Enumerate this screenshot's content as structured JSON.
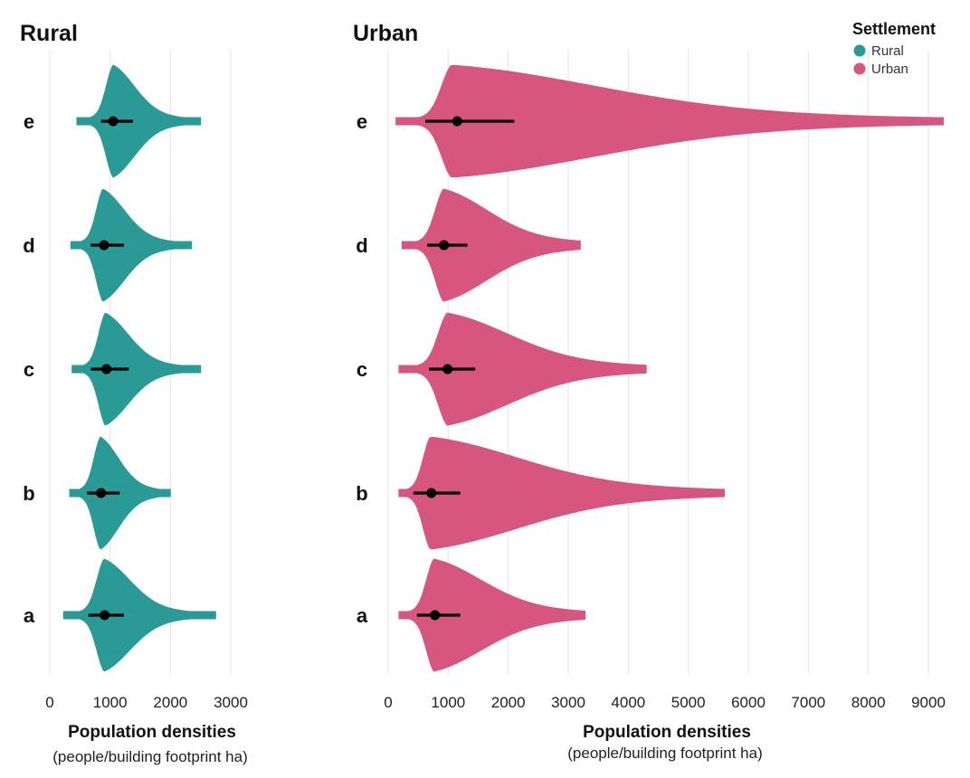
{
  "chart_data": {
    "type": "violin",
    "legend": {
      "title": "Settlement",
      "position": "top-right",
      "entries": [
        {
          "label": "Rural",
          "color": "#2a9a96"
        },
        {
          "label": "Urban",
          "color": "#d6567f"
        }
      ]
    },
    "panels": [
      {
        "title": "Rural",
        "color": "#2a9a96",
        "categories": [
          "e",
          "d",
          "c",
          "b",
          "a"
        ],
        "xlim": [
          0,
          3000
        ],
        "xticks": [
          0,
          1000,
          2000,
          3000
        ],
        "xlabel": "Population densities",
        "xlabel_sub": "(people/building footprint ha)",
        "series": [
          {
            "category": "e",
            "min": 450,
            "max": 2500,
            "median": 1050,
            "q1": 850,
            "q3": 1380,
            "mode": 1050
          },
          {
            "category": "d",
            "min": 350,
            "max": 2350,
            "median": 900,
            "q1": 680,
            "q3": 1230,
            "mode": 880
          },
          {
            "category": "c",
            "min": 370,
            "max": 2500,
            "median": 940,
            "q1": 680,
            "q3": 1310,
            "mode": 920
          },
          {
            "category": "b",
            "min": 330,
            "max": 2000,
            "median": 850,
            "q1": 620,
            "q3": 1160,
            "mode": 840
          },
          {
            "category": "a",
            "min": 230,
            "max": 2750,
            "median": 910,
            "q1": 640,
            "q3": 1230,
            "mode": 900
          }
        ]
      },
      {
        "title": "Urban",
        "color": "#d6567f",
        "categories": [
          "e",
          "d",
          "c",
          "b",
          "a"
        ],
        "xlim": [
          0,
          9300
        ],
        "xticks": [
          0,
          1000,
          2000,
          3000,
          4000,
          5000,
          6000,
          7000,
          8000,
          9000
        ],
        "xlabel": "Population densities",
        "xlabel_sub": "(people/building footprint ha)",
        "series": [
          {
            "category": "e",
            "min": 130,
            "max": 9250,
            "median": 1150,
            "q1": 620,
            "q3": 2100,
            "mode": 1050
          },
          {
            "category": "d",
            "min": 230,
            "max": 3200,
            "median": 930,
            "q1": 650,
            "q3": 1320,
            "mode": 920
          },
          {
            "category": "c",
            "min": 180,
            "max": 4300,
            "median": 990,
            "q1": 680,
            "q3": 1450,
            "mode": 980
          },
          {
            "category": "b",
            "min": 180,
            "max": 5600,
            "median": 720,
            "q1": 420,
            "q3": 1200,
            "mode": 700
          },
          {
            "category": "a",
            "min": 180,
            "max": 3280,
            "median": 780,
            "q1": 480,
            "q3": 1200,
            "mode": 760
          }
        ]
      }
    ]
  }
}
